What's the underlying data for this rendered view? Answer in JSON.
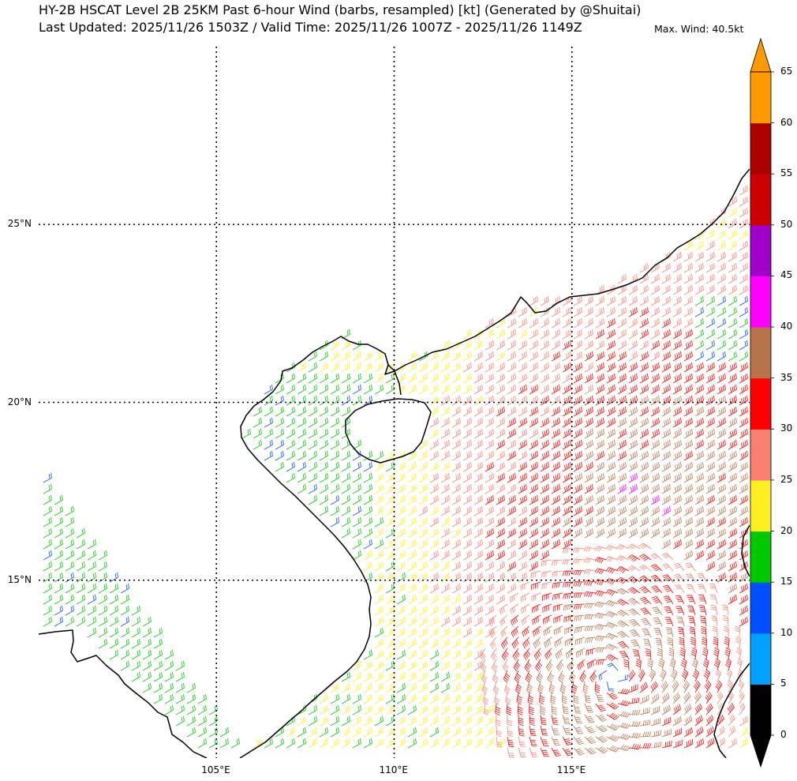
{
  "header": {
    "title_line_1": "HY-2B HSCAT Level 2B 25KM Past 6-hour Wind (barbs, resampled) [kt] (Generated by @Shuitai)",
    "title_line_2": "Last Updated: 2025/11/26 1503Z / Valid Time: 2025/11/26 1007Z - 2025/11/26 1149Z",
    "max_wind": "Max. Wind: 40.5kt"
  },
  "map": {
    "lon_range": [
      100,
      120
    ],
    "lat_range": [
      10,
      30
    ],
    "lon_labels": [
      {
        "lon": 105,
        "text": "105°E"
      },
      {
        "lon": 110,
        "text": "110°E"
      },
      {
        "lon": 115,
        "text": "115°E"
      }
    ],
    "lat_labels": [
      {
        "lat": 25,
        "text": "25°N"
      },
      {
        "lat": 20,
        "text": "20°N"
      },
      {
        "lat": 15,
        "text": "15°N"
      }
    ],
    "storm_center": {
      "lon": 116.2,
      "lat": 12.3
    }
  },
  "colorbar": {
    "ticks": [
      "0",
      "5",
      "10",
      "15",
      "20",
      "25",
      "30",
      "35",
      "40",
      "45",
      "50",
      "55",
      "60",
      "65"
    ],
    "bins": [
      {
        "from": 0,
        "to": 5,
        "color": "#000000"
      },
      {
        "from": 5,
        "to": 10,
        "color": "#00a0ff"
      },
      {
        "from": 10,
        "to": 15,
        "color": "#0050ff"
      },
      {
        "from": 15,
        "to": 20,
        "color": "#00c800"
      },
      {
        "from": 20,
        "to": 25,
        "color": "#ffee22"
      },
      {
        "from": 25,
        "to": 30,
        "color": "#fa8072"
      },
      {
        "from": 30,
        "to": 35,
        "color": "#ff0000"
      },
      {
        "from": 35,
        "to": 40,
        "color": "#b8734a"
      },
      {
        "from": 40,
        "to": 45,
        "color": "#ff00ff"
      },
      {
        "from": 45,
        "to": 50,
        "color": "#a000c8"
      },
      {
        "from": 50,
        "to": 55,
        "color": "#cc0000"
      },
      {
        "from": 55,
        "to": 60,
        "color": "#aa0000"
      },
      {
        "from": 60,
        "to": 65,
        "color": "#ff9900"
      }
    ],
    "under_color": "#000000",
    "over_color": "#ff9900"
  }
}
